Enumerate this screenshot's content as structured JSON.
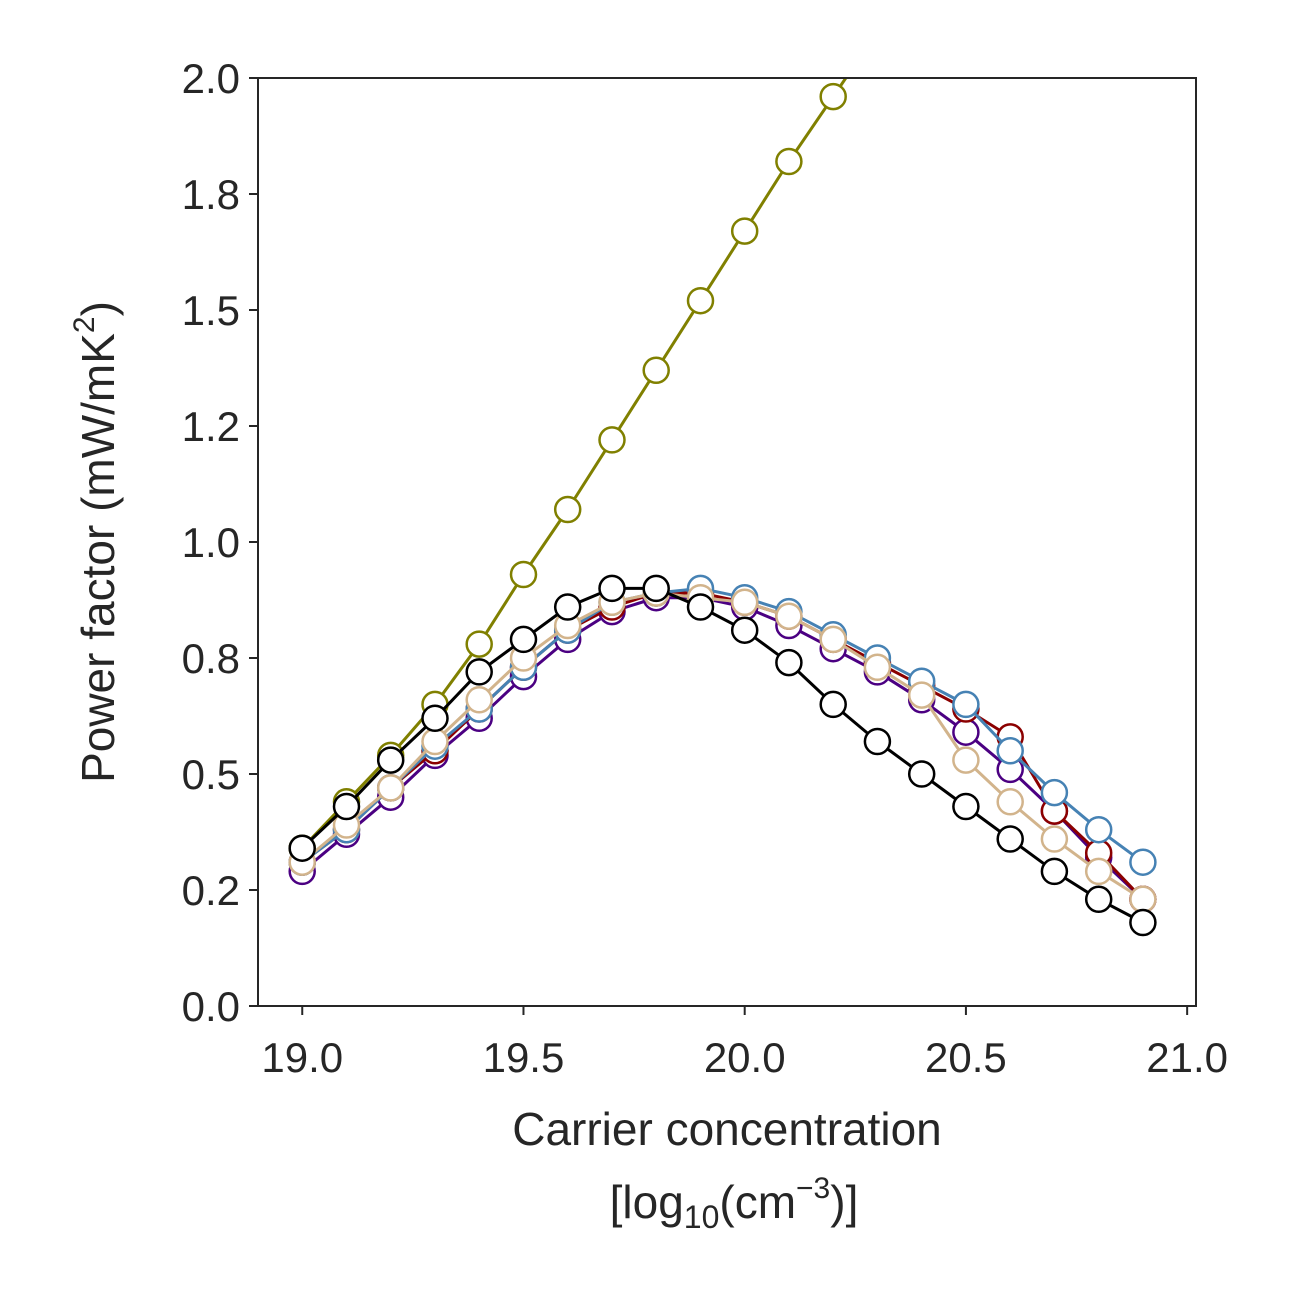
{
  "chart_data": {
    "type": "line",
    "xlabel": "Carrier concentration",
    "xlabel_line2": {
      "prefix": "[log",
      "sub": "10",
      "mid": "(cm",
      "sup": "−3",
      "suffix": ")]"
    },
    "ylabel": {
      "main": "Power factor (mW/mK",
      "sup": "2",
      "suffix": ")"
    },
    "xlim": [
      18.9,
      21.02
    ],
    "ylim": [
      0.0,
      2.0
    ],
    "xticks": [
      19.0,
      19.5,
      20.0,
      20.5,
      21.0
    ],
    "xtick_labels": [
      "19.0",
      "19.5",
      "20.0",
      "20.5",
      "21.0"
    ],
    "yticks": [
      0.0,
      0.25,
      0.5,
      0.75,
      1.0,
      1.25,
      1.5,
      1.75,
      2.0
    ],
    "ytick_labels": [
      "0.0",
      "0.2",
      "0.5",
      "0.8",
      "1.0",
      "1.2",
      "1.5",
      "1.8",
      "2.0"
    ],
    "grid": false,
    "x": [
      19.0,
      19.1,
      19.2,
      19.3,
      19.4,
      19.5,
      19.6,
      19.7,
      19.8,
      19.9,
      20.0,
      20.1,
      20.2,
      20.3,
      20.4,
      20.5,
      20.6,
      20.7,
      20.8,
      20.9
    ],
    "series": [
      {
        "color": "#808000",
        "marker_fill": "#ffffff",
        "values": [
          0.34,
          0.44,
          0.54,
          0.65,
          0.78,
          0.93,
          1.07,
          1.22,
          1.37,
          1.52,
          1.67,
          1.82,
          1.96,
          2.1,
          null,
          null,
          null,
          null,
          null,
          null
        ]
      },
      {
        "color": "#4b0082",
        "marker_fill": "#ffffff",
        "values": [
          0.29,
          0.37,
          0.45,
          0.54,
          0.62,
          0.71,
          0.79,
          0.85,
          0.88,
          0.88,
          0.86,
          0.82,
          0.77,
          0.72,
          0.66,
          0.59,
          0.51,
          0.42,
          0.32,
          0.23
        ]
      },
      {
        "color": "#8b0000",
        "marker_fill": "#ffffff",
        "values": [
          0.31,
          0.38,
          0.47,
          0.55,
          0.64,
          0.73,
          0.81,
          0.86,
          0.89,
          0.89,
          0.87,
          0.84,
          0.79,
          0.74,
          0.69,
          0.64,
          0.58,
          0.42,
          0.33,
          0.23
        ]
      },
      {
        "color": "#4682b4",
        "marker_fill": "#ffffff",
        "values": [
          0.31,
          0.38,
          0.47,
          0.56,
          0.64,
          0.73,
          0.81,
          0.87,
          0.89,
          0.9,
          0.88,
          0.85,
          0.8,
          0.75,
          0.7,
          0.65,
          0.55,
          0.46,
          0.38,
          0.31
        ]
      },
      {
        "color": "#d2b48c",
        "marker_fill": "#ffffff",
        "values": [
          0.31,
          0.39,
          0.47,
          0.57,
          0.66,
          0.75,
          0.82,
          0.87,
          0.89,
          0.88,
          0.87,
          0.84,
          0.79,
          0.73,
          0.67,
          0.53,
          0.44,
          0.36,
          0.29,
          0.23
        ]
      },
      {
        "color": "#000000",
        "marker_fill": "#ffffff",
        "values": [
          0.34,
          0.43,
          0.53,
          0.62,
          0.72,
          0.79,
          0.86,
          0.9,
          0.9,
          0.86,
          0.81,
          0.74,
          0.65,
          0.57,
          0.5,
          0.43,
          0.36,
          0.29,
          0.23,
          0.18
        ]
      }
    ]
  }
}
